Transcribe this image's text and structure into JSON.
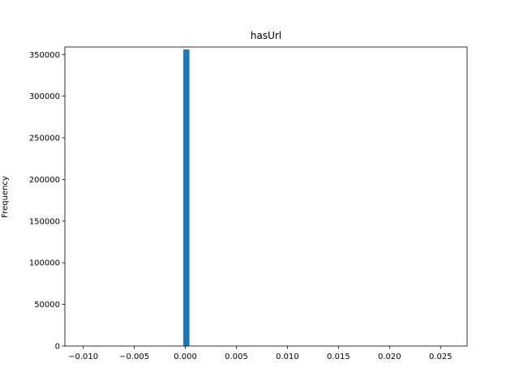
{
  "chart_data": {
    "type": "bar",
    "title": "hasUrl",
    "xlabel": "",
    "ylabel": "Frequency",
    "xlim": [
      -0.0118,
      0.0276
    ],
    "ylim": [
      0,
      359000
    ],
    "x_ticks": [
      {
        "value": -0.01,
        "label": "−0.010"
      },
      {
        "value": -0.005,
        "label": "−0.005"
      },
      {
        "value": 0.0,
        "label": "0.000"
      },
      {
        "value": 0.005,
        "label": "0.005"
      },
      {
        "value": 0.01,
        "label": "0.010"
      },
      {
        "value": 0.015,
        "label": "0.015"
      },
      {
        "value": 0.02,
        "label": "0.020"
      },
      {
        "value": 0.025,
        "label": "0.025"
      }
    ],
    "y_ticks": [
      {
        "value": 0,
        "label": "0"
      },
      {
        "value": 50000,
        "label": "50000"
      },
      {
        "value": 100000,
        "label": "100000"
      },
      {
        "value": 150000,
        "label": "150000"
      },
      {
        "value": 200000,
        "label": "200000"
      },
      {
        "value": 250000,
        "label": "250000"
      },
      {
        "value": 300000,
        "label": "300000"
      },
      {
        "value": 350000,
        "label": "350000"
      }
    ],
    "bars": [
      {
        "x0": -0.0002,
        "x1": 0.0004,
        "value": 356000
      }
    ],
    "bar_color": "#1f77b4",
    "grid": false,
    "legend": "none"
  }
}
